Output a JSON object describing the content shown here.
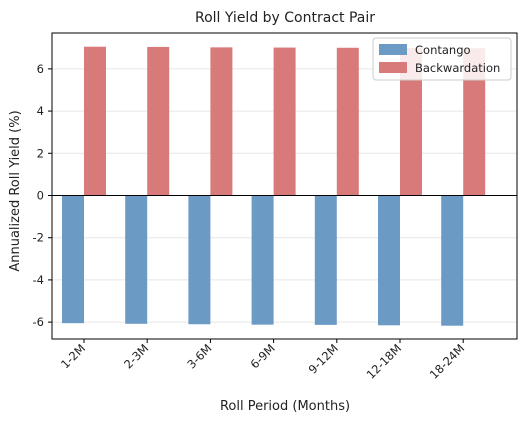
{
  "chart_data": {
    "type": "bar",
    "title": "Roll Yield by Contract Pair",
    "xlabel": "Roll Period (Months)",
    "ylabel": "Annualized Roll Yield (%)",
    "categories": [
      "1-2M",
      "2-3M",
      "3-6M",
      "6-9M",
      "9-12M",
      "12-18M",
      "18-24M"
    ],
    "series": [
      {
        "name": "Contango",
        "color": "#6b9ac4",
        "values": [
          -6.05,
          -6.08,
          -6.1,
          -6.12,
          -6.13,
          -6.15,
          -6.17
        ]
      },
      {
        "name": "Backwardation",
        "color": "#d87a7a",
        "values": [
          7.05,
          7.04,
          7.02,
          7.01,
          7.0,
          6.99,
          6.98
        ]
      }
    ],
    "ylim": [
      -6.8,
      7.7
    ],
    "yticks": [
      -6,
      -4,
      -2,
      0,
      2,
      4,
      6
    ],
    "ytick_labels": [
      "-6",
      "-4",
      "-2",
      "0",
      "2",
      "4",
      "6"
    ],
    "grid": "y",
    "legend": "top-right"
  }
}
